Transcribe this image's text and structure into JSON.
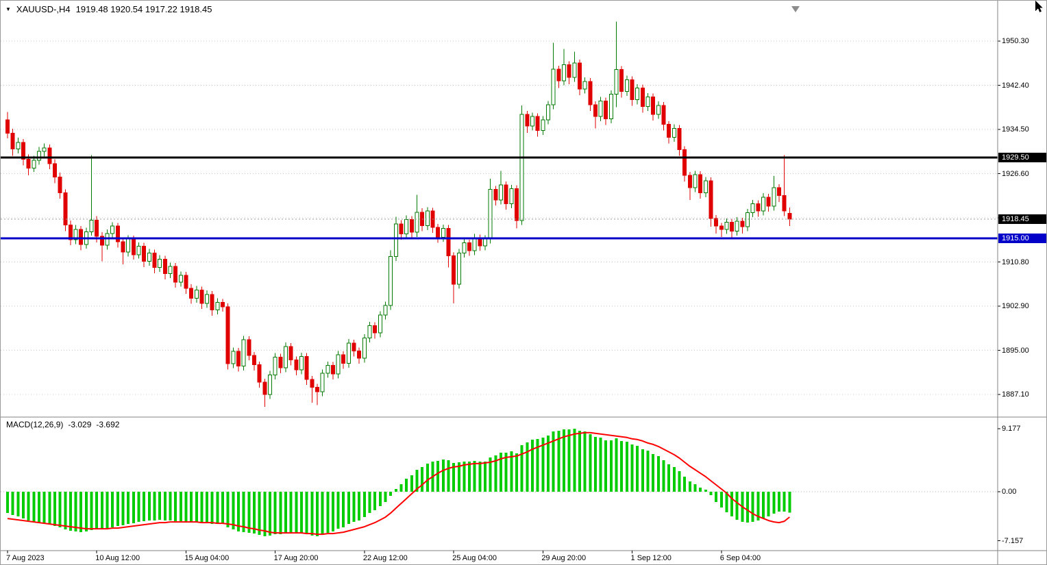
{
  "header": {
    "dropdown_glyph": "▼",
    "symbol": "XAUUSD-,H4",
    "ohlc": "1919.48 1920.54 1917.22 1918.45"
  },
  "chart_data": {
    "type": "candlestick",
    "symbol": "XAUUSD-",
    "timeframe": "H4",
    "current_bar": {
      "open": 1919.48,
      "high": 1920.54,
      "low": 1917.22,
      "close": 1918.45
    },
    "price_axis": {
      "gridlines": [
        {
          "p": 1950.3,
          "label": "1950.30"
        },
        {
          "p": 1942.4,
          "label": "1942.40"
        },
        {
          "p": 1934.5,
          "label": "1934.50"
        },
        {
          "p": 1926.6,
          "label": "1926.60"
        },
        {
          "p": 1918.7,
          "label": ""
        },
        {
          "p": 1910.8,
          "label": "1910.80"
        },
        {
          "p": 1902.9,
          "label": "1902.90"
        },
        {
          "p": 1895.0,
          "label": "1895.00"
        },
        {
          "p": 1887.1,
          "label": "1887.10"
        }
      ]
    },
    "levels": {
      "resistance": {
        "price": 1929.5,
        "label": "1929.50",
        "color": "#000000",
        "style": "solid",
        "width": 3
      },
      "bid": {
        "price": 1918.45,
        "label": "1918.45",
        "color": "#000000",
        "line_color": "#9a9a9a",
        "style": "dotted",
        "width": 1
      },
      "support": {
        "price": 1915.0,
        "label": "1915.00",
        "color": "#0000c8",
        "style": "solid",
        "width": 3
      }
    },
    "time_axis": [
      {
        "label": "7 Aug 2023",
        "bar": 0
      },
      {
        "label": "10 Aug 12:00",
        "bar": 17
      },
      {
        "label": "15 Aug 04:00",
        "bar": 34
      },
      {
        "label": "17 Aug 20:00",
        "bar": 51
      },
      {
        "label": "22 Aug 12:00",
        "bar": 68
      },
      {
        "label": "25 Aug 04:00",
        "bar": 85
      },
      {
        "label": "29 Aug 20:00",
        "bar": 102
      },
      {
        "label": "1 Sep 12:00",
        "bar": 119
      },
      {
        "label": "6 Sep 04:00",
        "bar": 136
      }
    ],
    "candles": [
      [
        1936.2,
        1937.6,
        1932.9,
        1933.8
      ],
      [
        1933.8,
        1934.6,
        1929.8,
        1931.0
      ],
      [
        1931.0,
        1933.0,
        1930.2,
        1932.2
      ],
      [
        1932.2,
        1932.8,
        1928.1,
        1929.2
      ],
      [
        1929.2,
        1930.0,
        1926.3,
        1927.6
      ],
      [
        1927.6,
        1929.8,
        1926.9,
        1929.0
      ],
      [
        1929.0,
        1931.4,
        1928.2,
        1930.6
      ],
      [
        1930.6,
        1932.0,
        1929.6,
        1931.2
      ],
      [
        1931.2,
        1931.8,
        1927.4,
        1928.4
      ],
      [
        1928.4,
        1929.2,
        1924.9,
        1926.0
      ],
      [
        1926.0,
        1926.8,
        1922.1,
        1923.2
      ],
      [
        1923.2,
        1923.8,
        1916.3,
        1917.4
      ],
      [
        1917.4,
        1918.2,
        1913.8,
        1914.8
      ],
      [
        1914.8,
        1917.4,
        1914.0,
        1916.6
      ],
      [
        1916.6,
        1917.2,
        1912.9,
        1913.9
      ],
      [
        1913.9,
        1916.9,
        1913.2,
        1916.2
      ],
      [
        1916.2,
        1929.9,
        1915.5,
        1918.3
      ],
      [
        1918.3,
        1919.0,
        1914.3,
        1915.4
      ],
      [
        1915.4,
        1916.1,
        1910.9,
        1913.8
      ],
      [
        1913.8,
        1916.6,
        1913.0,
        1915.9
      ],
      [
        1915.9,
        1917.9,
        1915.0,
        1917.2
      ],
      [
        1917.2,
        1917.8,
        1913.4,
        1914.4
      ],
      [
        1914.4,
        1915.1,
        1910.4,
        1912.6
      ],
      [
        1912.6,
        1915.6,
        1911.8,
        1914.9
      ],
      [
        1914.9,
        1915.5,
        1911.2,
        1912.1
      ],
      [
        1912.1,
        1914.3,
        1911.4,
        1913.6
      ],
      [
        1913.6,
        1914.2,
        1909.9,
        1910.9
      ],
      [
        1910.9,
        1913.1,
        1910.1,
        1912.4
      ],
      [
        1912.4,
        1913.0,
        1908.8,
        1909.8
      ],
      [
        1909.8,
        1912.0,
        1909.0,
        1911.3
      ],
      [
        1911.3,
        1911.9,
        1907.7,
        1908.7
      ],
      [
        1908.7,
        1910.7,
        1907.9,
        1910.0
      ],
      [
        1910.0,
        1910.6,
        1906.2,
        1907.2
      ],
      [
        1907.2,
        1909.1,
        1906.4,
        1908.4
      ],
      [
        1908.4,
        1909.0,
        1905.1,
        1906.1
      ],
      [
        1906.1,
        1906.8,
        1903.3,
        1904.3
      ],
      [
        1904.3,
        1906.5,
        1903.5,
        1905.8
      ],
      [
        1905.8,
        1906.4,
        1902.4,
        1903.4
      ],
      [
        1903.4,
        1905.7,
        1902.6,
        1905.0
      ],
      [
        1905.0,
        1905.6,
        1901.2,
        1902.2
      ],
      [
        1902.2,
        1904.3,
        1901.4,
        1903.6
      ],
      [
        1903.6,
        1904.2,
        1901.9,
        1902.8
      ],
      [
        1902.8,
        1903.4,
        1891.6,
        1892.6
      ],
      [
        1892.6,
        1895.5,
        1891.8,
        1894.8
      ],
      [
        1894.8,
        1895.4,
        1891.2,
        1892.2
      ],
      [
        1892.2,
        1897.6,
        1891.4,
        1896.9
      ],
      [
        1896.9,
        1897.5,
        1893.2,
        1894.1
      ],
      [
        1894.1,
        1894.7,
        1891.4,
        1892.4
      ],
      [
        1892.4,
        1893.0,
        1888.3,
        1889.3
      ],
      [
        1889.3,
        1889.9,
        1884.9,
        1887.1
      ],
      [
        1887.1,
        1891.3,
        1886.3,
        1890.6
      ],
      [
        1890.6,
        1894.5,
        1889.8,
        1893.8
      ],
      [
        1893.8,
        1894.4,
        1890.9,
        1891.9
      ],
      [
        1891.9,
        1896.4,
        1891.1,
        1895.7
      ],
      [
        1895.7,
        1896.3,
        1892.3,
        1893.3
      ],
      [
        1893.3,
        1893.9,
        1890.5,
        1891.5
      ],
      [
        1891.5,
        1894.6,
        1890.7,
        1893.9
      ],
      [
        1893.9,
        1894.5,
        1888.8,
        1889.8
      ],
      [
        1889.8,
        1890.4,
        1885.6,
        1888.4
      ],
      [
        1888.4,
        1889.0,
        1885.2,
        1887.6
      ],
      [
        1887.6,
        1891.6,
        1886.8,
        1890.9
      ],
      [
        1890.9,
        1893.0,
        1890.1,
        1892.3
      ],
      [
        1892.3,
        1892.9,
        1889.8,
        1890.8
      ],
      [
        1890.8,
        1894.9,
        1890.0,
        1894.2
      ],
      [
        1894.2,
        1894.8,
        1891.7,
        1892.7
      ],
      [
        1892.7,
        1897.0,
        1891.9,
        1896.3
      ],
      [
        1896.3,
        1896.9,
        1893.9,
        1894.9
      ],
      [
        1894.9,
        1895.5,
        1892.6,
        1893.6
      ],
      [
        1893.6,
        1897.9,
        1892.8,
        1897.2
      ],
      [
        1897.2,
        1900.1,
        1896.4,
        1899.4
      ],
      [
        1899.4,
        1900.0,
        1897.1,
        1898.1
      ],
      [
        1898.1,
        1902.0,
        1897.3,
        1901.3
      ],
      [
        1901.3,
        1903.7,
        1900.5,
        1903.0
      ],
      [
        1903.0,
        1912.9,
        1902.2,
        1911.8
      ],
      [
        1911.8,
        1918.9,
        1911.0,
        1917.6
      ],
      [
        1917.6,
        1918.3,
        1914.8,
        1915.8
      ],
      [
        1915.8,
        1919.1,
        1915.0,
        1918.4
      ],
      [
        1918.4,
        1919.0,
        1915.1,
        1916.1
      ],
      [
        1916.1,
        1922.8,
        1915.3,
        1919.7
      ],
      [
        1919.7,
        1920.4,
        1916.3,
        1917.3
      ],
      [
        1917.3,
        1920.6,
        1916.5,
        1919.9
      ],
      [
        1919.9,
        1920.5,
        1916.0,
        1917.0
      ],
      [
        1917.0,
        1917.6,
        1914.2,
        1915.2
      ],
      [
        1915.2,
        1917.5,
        1914.4,
        1916.8
      ],
      [
        1916.8,
        1917.4,
        1909.8,
        1911.9
      ],
      [
        1911.9,
        1912.5,
        1903.4,
        1906.8
      ],
      [
        1906.8,
        1913.1,
        1906.0,
        1912.4
      ],
      [
        1912.4,
        1914.9,
        1911.6,
        1914.2
      ],
      [
        1914.2,
        1914.8,
        1911.9,
        1912.8
      ],
      [
        1912.8,
        1915.8,
        1912.0,
        1915.1
      ],
      [
        1915.1,
        1915.7,
        1912.8,
        1913.7
      ],
      [
        1913.7,
        1915.6,
        1912.9,
        1914.9
      ],
      [
        1914.9,
        1925.7,
        1914.1,
        1923.8
      ],
      [
        1923.8,
        1924.4,
        1920.9,
        1921.9
      ],
      [
        1921.9,
        1927.1,
        1921.1,
        1924.6
      ],
      [
        1924.6,
        1925.2,
        1920.2,
        1921.2
      ],
      [
        1921.2,
        1924.6,
        1920.4,
        1923.9
      ],
      [
        1923.9,
        1924.5,
        1916.8,
        1918.2
      ],
      [
        1918.2,
        1938.8,
        1917.4,
        1937.2
      ],
      [
        1937.2,
        1937.8,
        1933.9,
        1935.1
      ],
      [
        1935.1,
        1937.5,
        1934.3,
        1936.8
      ],
      [
        1936.8,
        1937.4,
        1933.2,
        1934.3
      ],
      [
        1934.3,
        1936.9,
        1933.5,
        1936.2
      ],
      [
        1936.2,
        1939.6,
        1935.4,
        1938.9
      ],
      [
        1938.9,
        1950.0,
        1938.1,
        1945.3
      ],
      [
        1945.3,
        1945.9,
        1941.9,
        1943.2
      ],
      [
        1943.2,
        1948.9,
        1942.4,
        1946.1
      ],
      [
        1946.1,
        1946.7,
        1942.6,
        1943.8
      ],
      [
        1943.8,
        1948.4,
        1943.0,
        1946.4
      ],
      [
        1946.4,
        1947.0,
        1940.6,
        1941.7
      ],
      [
        1941.7,
        1943.8,
        1940.9,
        1943.1
      ],
      [
        1943.1,
        1943.7,
        1937.8,
        1938.9
      ],
      [
        1938.9,
        1939.5,
        1934.7,
        1936.8
      ],
      [
        1936.8,
        1940.3,
        1936.0,
        1939.6
      ],
      [
        1939.6,
        1940.2,
        1935.3,
        1936.4
      ],
      [
        1936.4,
        1941.5,
        1935.6,
        1940.8
      ],
      [
        1940.8,
        1953.8,
        1938.5,
        1945.2
      ],
      [
        1945.2,
        1945.8,
        1940.2,
        1941.3
      ],
      [
        1941.3,
        1944.1,
        1940.5,
        1943.4
      ],
      [
        1943.4,
        1944.0,
        1938.7,
        1939.8
      ],
      [
        1939.8,
        1942.6,
        1939.0,
        1941.9
      ],
      [
        1941.9,
        1942.5,
        1937.5,
        1938.6
      ],
      [
        1938.6,
        1941.0,
        1937.8,
        1940.3
      ],
      [
        1940.3,
        1940.9,
        1936.1,
        1937.2
      ],
      [
        1937.2,
        1939.5,
        1936.4,
        1938.8
      ],
      [
        1938.8,
        1939.4,
        1934.3,
        1935.4
      ],
      [
        1935.4,
        1936.0,
        1932.0,
        1933.1
      ],
      [
        1933.1,
        1935.4,
        1932.3,
        1934.7
      ],
      [
        1934.7,
        1935.3,
        1929.8,
        1930.9
      ],
      [
        1930.9,
        1931.5,
        1925.2,
        1926.3
      ],
      [
        1926.3,
        1926.9,
        1921.9,
        1924.1
      ],
      [
        1924.1,
        1927.1,
        1923.3,
        1926.4
      ],
      [
        1926.4,
        1927.0,
        1922.1,
        1923.2
      ],
      [
        1923.2,
        1926.0,
        1922.4,
        1925.3
      ],
      [
        1925.3,
        1925.9,
        1917.1,
        1918.6
      ],
      [
        1918.6,
        1919.2,
        1915.9,
        1917.2
      ],
      [
        1917.2,
        1917.8,
        1915.3,
        1916.6
      ],
      [
        1916.6,
        1918.6,
        1915.8,
        1917.9
      ],
      [
        1917.9,
        1918.5,
        1915.2,
        1916.3
      ],
      [
        1916.3,
        1918.8,
        1915.5,
        1918.1
      ],
      [
        1918.1,
        1918.7,
        1915.9,
        1917.1
      ],
      [
        1917.1,
        1920.3,
        1916.3,
        1919.6
      ],
      [
        1919.6,
        1921.9,
        1918.8,
        1921.2
      ],
      [
        1921.2,
        1921.8,
        1918.9,
        1919.9
      ],
      [
        1919.9,
        1923.1,
        1919.1,
        1922.4
      ],
      [
        1922.4,
        1923.0,
        1919.8,
        1920.8
      ],
      [
        1920.8,
        1926.2,
        1920.0,
        1924.1
      ],
      [
        1924.1,
        1924.7,
        1921.5,
        1922.7
      ],
      [
        1922.7,
        1929.9,
        1919.0,
        1919.9
      ],
      [
        1919.48,
        1920.54,
        1917.22,
        1918.45
      ]
    ],
    "macd": {
      "label": "MACD(12,26,9)",
      "main_value": "-3.029",
      "signal_value": "-3.692",
      "scale": [
        {
          "value": 9.177,
          "label": "9.177"
        },
        {
          "value": 0,
          "label": "0.00"
        },
        {
          "value": -7.157,
          "label": "-7.157"
        }
      ],
      "histogram": [
        -3.1,
        -3.4,
        -3.6,
        -3.9,
        -4.2,
        -4.4,
        -4.5,
        -4.6,
        -4.8,
        -5.0,
        -5.2,
        -5.5,
        -5.7,
        -5.8,
        -5.9,
        -5.8,
        -5.6,
        -5.5,
        -5.5,
        -5.4,
        -5.2,
        -5.0,
        -4.9,
        -4.7,
        -4.6,
        -4.4,
        -4.3,
        -4.2,
        -4.2,
        -4.1,
        -4.2,
        -4.2,
        -4.3,
        -4.3,
        -4.4,
        -4.5,
        -4.5,
        -4.6,
        -4.6,
        -4.7,
        -4.7,
        -4.7,
        -5.2,
        -5.5,
        -5.8,
        -5.9,
        -6.0,
        -6.1,
        -6.3,
        -6.5,
        -6.4,
        -6.2,
        -6.2,
        -6.0,
        -6.0,
        -6.1,
        -6.0,
        -6.2,
        -6.4,
        -6.5,
        -6.3,
        -6.0,
        -5.8,
        -5.4,
        -5.2,
        -4.7,
        -4.4,
        -4.2,
        -3.7,
        -3.1,
        -2.7,
        -2.1,
        -1.5,
        -0.6,
        0.4,
        1.1,
        1.9,
        2.4,
        3.2,
        3.6,
        4.1,
        4.4,
        4.5,
        4.7,
        4.6,
        4.2,
        4.3,
        4.4,
        4.4,
        4.5,
        4.4,
        4.4,
        5.0,
        5.3,
        5.7,
        5.7,
        5.9,
        5.6,
        6.8,
        7.2,
        7.6,
        7.7,
        7.9,
        8.2,
        8.8,
        8.9,
        9.1,
        9.1,
        9.2,
        8.9,
        8.8,
        8.4,
        8.0,
        7.9,
        7.5,
        7.5,
        7.8,
        7.4,
        7.3,
        6.9,
        6.7,
        6.2,
        6.0,
        5.5,
        5.2,
        4.6,
        4.0,
        3.6,
        3.0,
        2.2,
        1.5,
        1.1,
        0.6,
        0.3,
        -0.5,
        -1.5,
        -2.3,
        -3.0,
        -3.6,
        -4.1,
        -4.4,
        -4.5,
        -4.4,
        -4.2,
        -3.9,
        -3.6,
        -3.2,
        -2.9,
        -2.9,
        -3.029
      ],
      "signal": [
        -3.9,
        -4.0,
        -4.1,
        -4.2,
        -4.3,
        -4.4,
        -4.5,
        -4.6,
        -4.7,
        -4.8,
        -4.9,
        -5.0,
        -5.1,
        -5.2,
        -5.3,
        -5.4,
        -5.4,
        -5.4,
        -5.4,
        -5.4,
        -5.3,
        -5.3,
        -5.2,
        -5.1,
        -5.0,
        -4.9,
        -4.8,
        -4.7,
        -4.6,
        -4.5,
        -4.5,
        -4.4,
        -4.4,
        -4.4,
        -4.4,
        -4.4,
        -4.4,
        -4.5,
        -4.5,
        -4.5,
        -4.6,
        -4.6,
        -4.7,
        -4.8,
        -5.0,
        -5.1,
        -5.3,
        -5.4,
        -5.6,
        -5.7,
        -5.9,
        -6.0,
        -6.0,
        -6.0,
        -6.0,
        -6.0,
        -6.0,
        -6.1,
        -6.1,
        -6.2,
        -6.2,
        -6.1,
        -6.1,
        -6.0,
        -5.9,
        -5.7,
        -5.5,
        -5.3,
        -5.1,
        -4.8,
        -4.5,
        -4.1,
        -3.7,
        -3.1,
        -2.4,
        -1.7,
        -1.0,
        -0.3,
        0.4,
        1.0,
        1.7,
        2.2,
        2.7,
        3.1,
        3.4,
        3.6,
        3.7,
        3.9,
        4.0,
        4.1,
        4.1,
        4.2,
        4.3,
        4.5,
        4.8,
        5.0,
        5.1,
        5.2,
        5.5,
        5.8,
        6.2,
        6.5,
        6.8,
        7.1,
        7.4,
        7.7,
        8.0,
        8.2,
        8.4,
        8.5,
        8.6,
        8.6,
        8.5,
        8.4,
        8.3,
        8.2,
        8.1,
        8.0,
        7.9,
        7.7,
        7.6,
        7.4,
        7.1,
        6.9,
        6.6,
        6.2,
        5.8,
        5.4,
        4.9,
        4.3,
        3.7,
        3.2,
        2.7,
        2.2,
        1.6,
        1.0,
        0.4,
        -0.2,
        -1.0,
        -1.6,
        -2.2,
        -2.7,
        -3.2,
        -3.6,
        -3.9,
        -4.2,
        -4.4,
        -4.5,
        -4.3,
        -3.692
      ]
    },
    "colors": {
      "background": "#ffffff",
      "bull_fill": "#ffffff",
      "bull_stroke": "#007a00",
      "bear_fill": "#e00000",
      "bear_stroke": "#e00000",
      "histogram": "#00cc00",
      "signal": "#ff0000",
      "grid": "#c8c8c8",
      "separator": "#828282",
      "axis_text": "#000000",
      "badge_text": "#ffffff"
    }
  }
}
